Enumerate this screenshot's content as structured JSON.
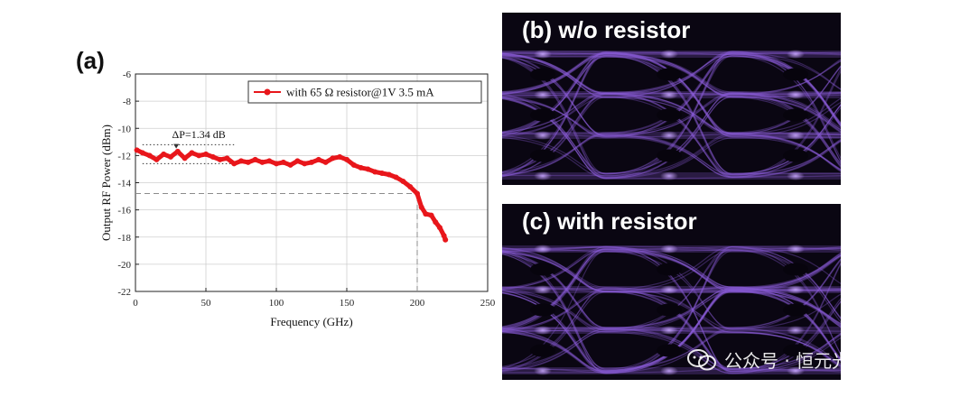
{
  "panel_a_label": "(a)",
  "panel_b_title": "(b) w/o resistor",
  "panel_c_title": "(c) with resistor",
  "watermark_text": "公众号 · 恒元光",
  "colors": {
    "series": "#e8161b",
    "eye_bg": "#0a0612",
    "eye_trace": "#8a5cd6",
    "dashed": "#8c8c8c"
  },
  "chart_data": {
    "type": "line",
    "xlabel": "Frequency (GHz)",
    "ylabel": "Output RF Power (dBm)",
    "xlim": [
      0,
      250
    ],
    "ylim": [
      -22,
      -6
    ],
    "xticks": [
      0,
      50,
      100,
      150,
      200,
      250
    ],
    "yticks": [
      -6,
      -8,
      -10,
      -12,
      -14,
      -16,
      -18,
      -20,
      -22
    ],
    "grid": true,
    "legend_position": "top-right",
    "series": [
      {
        "name": "with 65 Ω resistor@1V 3.5 mA",
        "x": [
          1,
          5,
          10,
          15,
          20,
          25,
          30,
          35,
          40,
          45,
          50,
          55,
          60,
          65,
          70,
          75,
          80,
          85,
          90,
          95,
          100,
          105,
          110,
          115,
          120,
          125,
          130,
          135,
          140,
          145,
          150,
          155,
          160,
          165,
          170,
          175,
          180,
          185,
          190,
          195,
          200,
          203,
          206,
          210,
          213,
          216,
          219,
          220
        ],
        "y": [
          -11.6,
          -11.8,
          -12.0,
          -12.3,
          -11.9,
          -12.1,
          -11.7,
          -12.2,
          -11.8,
          -12.0,
          -11.9,
          -12.1,
          -12.3,
          -12.2,
          -12.6,
          -12.4,
          -12.5,
          -12.3,
          -12.5,
          -12.4,
          -12.6,
          -12.5,
          -12.7,
          -12.4,
          -12.6,
          -12.5,
          -12.3,
          -12.5,
          -12.2,
          -12.1,
          -12.3,
          -12.7,
          -12.9,
          -13.0,
          -13.2,
          -13.3,
          -13.4,
          -13.6,
          -13.9,
          -14.3,
          -14.8,
          -15.8,
          -16.3,
          -16.4,
          -16.9,
          -17.3,
          -17.9,
          -18.2
        ]
      }
    ],
    "annotations": [
      {
        "text": "ΔP=1.34 dB",
        "type": "text"
      },
      {
        "type": "hline",
        "y": -11.2,
        "x_range": [
          5,
          70
        ],
        "style": "dotted"
      },
      {
        "type": "hline",
        "y": -12.6,
        "x_range": [
          5,
          70
        ],
        "style": "dotted"
      },
      {
        "type": "hline",
        "y": -14.8,
        "x_range": [
          0,
          200
        ],
        "style": "dashed"
      },
      {
        "type": "vline",
        "x": 200,
        "y_range": [
          -22,
          -14.8
        ],
        "style": "dashed"
      }
    ]
  }
}
